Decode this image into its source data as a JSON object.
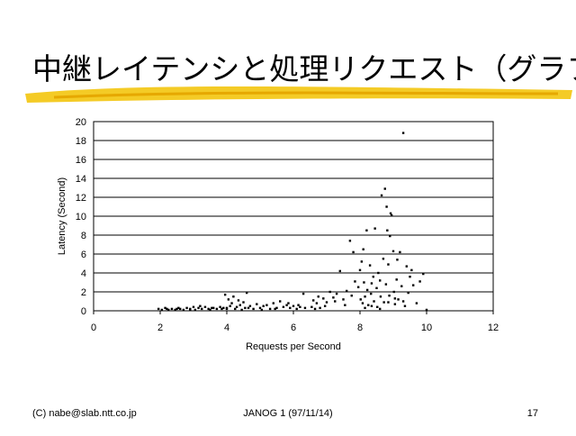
{
  "title": "中継レイテンシと処理リクエスト（グラフ）",
  "footer": {
    "left": "(C) nabe@slab.ntt.co.jp",
    "center": "JANOG 1 (97/11/14)",
    "right": "17"
  },
  "chart_data": {
    "type": "scatter",
    "x_label": "Requests per Second",
    "y_label": "Latency (Second)",
    "color": "#000000",
    "grid": true,
    "xlim": [
      0,
      12
    ],
    "xticks": [
      0,
      2,
      4,
      6,
      8,
      10,
      12
    ],
    "ylim": [
      0,
      20
    ],
    "yticks": [
      0,
      2,
      4,
      6,
      8,
      10,
      12,
      14,
      16,
      18,
      20
    ],
    "x": [
      1.95,
      2.05,
      2.15,
      2.25,
      2.35,
      2.45,
      2.55,
      2.6,
      2.7,
      2.8,
      2.9,
      3.0,
      3.05,
      3.15,
      3.25,
      3.35,
      3.45,
      3.5,
      3.6,
      3.7,
      3.8,
      3.9,
      2.2,
      2.5,
      2.9,
      3.2,
      3.55,
      3.85,
      3.95,
      4.0,
      4.05,
      4.1,
      4.15,
      4.2,
      4.3,
      4.35,
      4.4,
      4.5,
      4.55,
      4.6,
      4.7,
      4.8,
      4.9,
      5.0,
      5.1,
      5.2,
      5.3,
      5.4,
      5.5,
      5.6,
      5.7,
      5.8,
      5.9,
      6.0,
      6.1,
      6.2,
      6.3,
      6.35,
      4.25,
      4.45,
      4.65,
      5.05,
      5.45,
      5.85,
      6.15,
      4.0,
      6.55,
      6.6,
      6.7,
      6.75,
      6.8,
      6.9,
      7.0,
      7.1,
      7.2,
      7.3,
      7.4,
      7.5,
      7.6,
      7.7,
      7.75,
      7.8,
      7.85,
      6.65,
      6.95,
      7.25,
      7.55,
      7.95,
      8.0,
      8.02,
      8.05,
      8.08,
      8.1,
      8.12,
      8.15,
      8.2,
      8.22,
      8.25,
      8.3,
      8.33,
      8.35,
      8.4,
      8.42,
      8.45,
      8.5,
      8.52,
      8.55,
      8.6,
      8.62,
      8.65,
      8.7,
      8.72,
      8.75,
      8.78,
      8.8,
      8.82,
      8.85,
      8.88,
      8.9,
      8.92,
      8.95,
      9.0,
      9.02,
      9.05,
      9.1,
      9.12,
      9.15,
      9.2,
      9.25,
      9.3,
      9.35,
      9.4,
      9.45,
      9.5,
      9.55,
      9.6,
      9.7,
      9.8,
      9.9,
      10.0,
      8.15,
      8.35,
      8.6,
      8.85,
      9.05,
      9.3
    ],
    "values": [
      0.2,
      0.1,
      0.3,
      0.1,
      0.2,
      0.1,
      0.3,
      0.2,
      0.1,
      0.3,
      0.2,
      0.4,
      0.1,
      0.3,
      0.2,
      0.4,
      0.2,
      0.1,
      0.3,
      0.2,
      0.4,
      0.3,
      0.2,
      0.2,
      0.1,
      0.5,
      0.3,
      0.2,
      1.7,
      0.3,
      1.2,
      0.5,
      0.8,
      1.5,
      0.4,
      1.1,
      0.6,
      0.9,
      0.3,
      1.9,
      0.5,
      0.2,
      0.7,
      0.3,
      0.5,
      0.6,
      0.2,
      0.8,
      0.3,
      1.0,
      0.4,
      0.6,
      0.3,
      0.5,
      0.2,
      0.4,
      1.8,
      0.3,
      0.2,
      0.1,
      0.3,
      0.1,
      0.2,
      0.8,
      0.6,
      0.2,
      0.4,
      1.1,
      0.8,
      1.5,
      0.3,
      1.3,
      0.9,
      2.0,
      1.4,
      1.8,
      4.2,
      1.2,
      2.1,
      7.4,
      1.6,
      6.2,
      3.1,
      0.2,
      0.5,
      1.0,
      0.6,
      2.5,
      4.3,
      1.2,
      5.2,
      0.8,
      6.5,
      3.0,
      1.5,
      8.5,
      2.2,
      0.6,
      4.8,
      1.8,
      2.9,
      3.6,
      1.0,
      8.7,
      2.4,
      0.4,
      4.0,
      3.2,
      1.5,
      12.2,
      5.5,
      0.9,
      12.9,
      2.8,
      11.0,
      8.5,
      4.9,
      1.6,
      7.9,
      10.3,
      10.1,
      6.3,
      2.0,
      0.7,
      3.3,
      5.4,
      1.2,
      6.2,
      2.6,
      18.8,
      0.5,
      4.7,
      1.9,
      3.6,
      4.3,
      2.7,
      0.8,
      3.1,
      3.9,
      0.1,
      0.3,
      0.5,
      0.2,
      0.9,
      1.3,
      1.0
    ]
  }
}
